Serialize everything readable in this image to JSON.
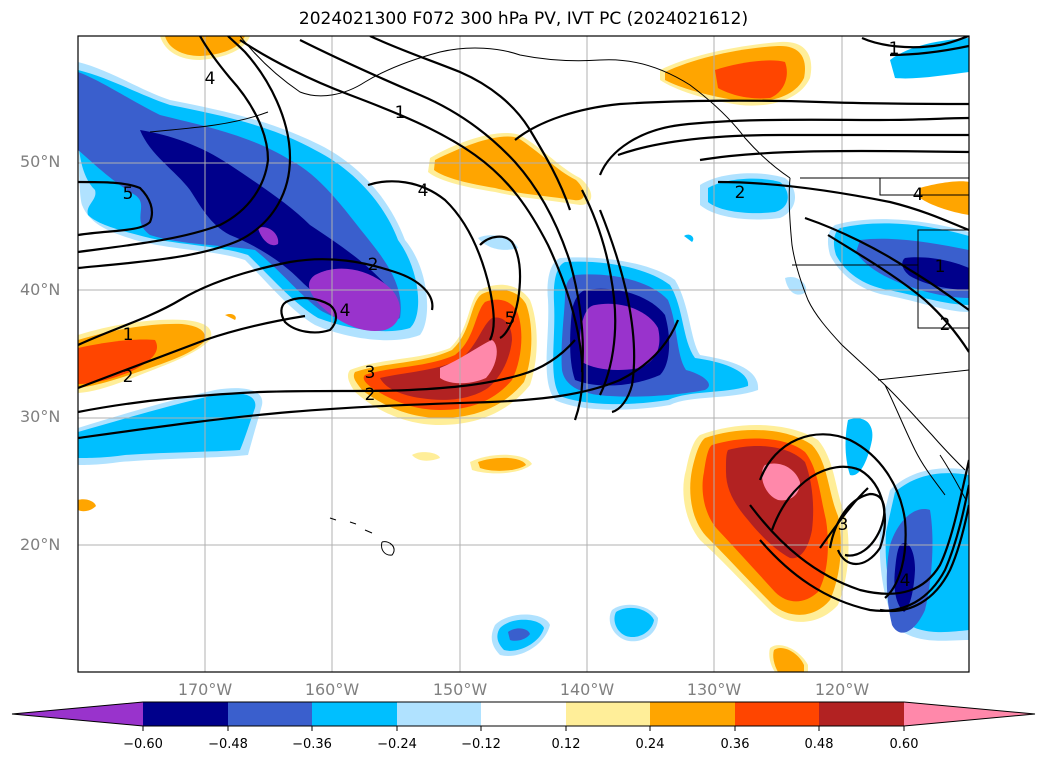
{
  "title": "2024021300 F072 300 hPa PV, IVT PC (2024021612)",
  "latitude_labels": [
    "50°N",
    "40°N",
    "30°N",
    "20°N"
  ],
  "longitude_labels": [
    "170°W",
    "160°W",
    "150°W",
    "140°W",
    "130°W",
    "120°W"
  ],
  "contour_labels": [
    "1",
    "4",
    "5",
    "4",
    "1",
    "2",
    "2",
    "4",
    "3",
    "2",
    "5",
    "4",
    "2",
    "3",
    "1",
    "1",
    "4",
    "2"
  ],
  "colorbar": {
    "ticks": [
      "−0.60",
      "−0.48",
      "−0.36",
      "−0.24",
      "−0.12",
      "0.12",
      "0.24",
      "0.36",
      "0.48",
      "0.60"
    ],
    "colors": [
      "#9933cc",
      "#00008b",
      "#3a5fcd",
      "#00bfff",
      "#b0e2ff",
      "#ffffff",
      "#ffee99",
      "#ffa500",
      "#ff4500",
      "#b22222",
      "#ff88aa"
    ]
  },
  "palette": {
    "neg_outer": "#b0e2ff",
    "neg_1": "#00bfff",
    "neg_2": "#3a5fcd",
    "neg_3": "#00008b",
    "neg_4": "#9933cc",
    "pos_outer": "#ffee99",
    "pos_1": "#ffa500",
    "pos_2": "#ff4500",
    "pos_3": "#b22222",
    "pos_4": "#ff88aa"
  }
}
